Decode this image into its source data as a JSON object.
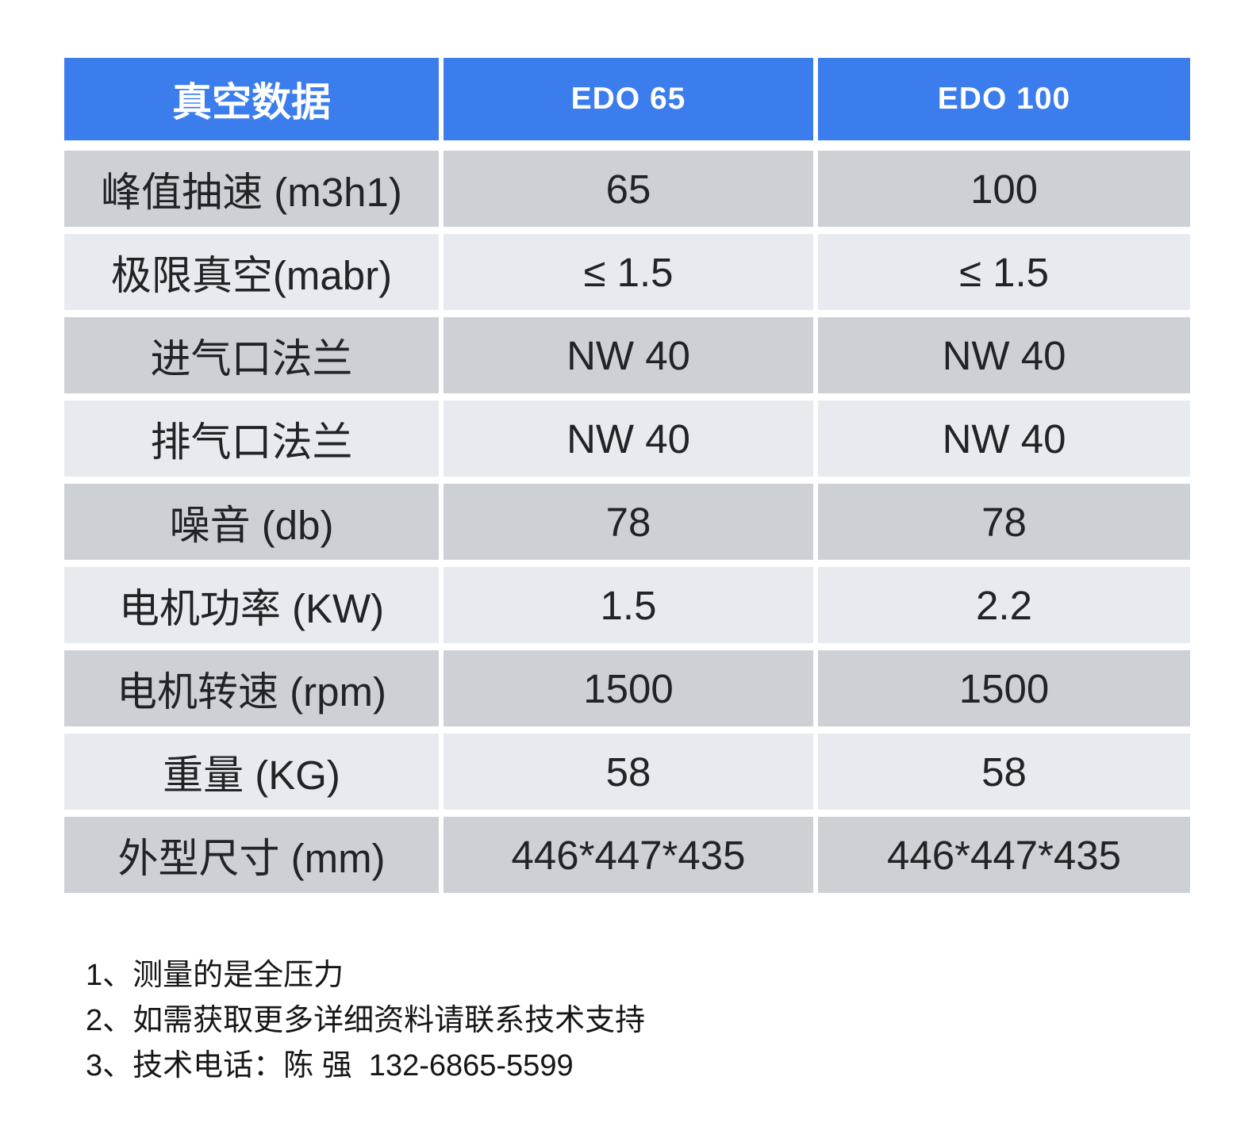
{
  "table": {
    "header": [
      "真空数据",
      "EDO 65",
      "EDO 100"
    ],
    "rows": [
      {
        "label": "峰值抽速 (m3h1)",
        "values": [
          "65",
          "100"
        ]
      },
      {
        "label": "极限真空(mabr)",
        "values": [
          "≤ 1.5",
          "≤ 1.5"
        ]
      },
      {
        "label": "进气口法兰",
        "values": [
          "NW 40",
          "NW 40"
        ]
      },
      {
        "label": "排气口法兰",
        "values": [
          "NW 40",
          "NW 40"
        ]
      },
      {
        "label": "噪音 (db)",
        "values": [
          "78",
          "78"
        ]
      },
      {
        "label": "电机功率 (KW)",
        "values": [
          "1.5",
          "2.2"
        ]
      },
      {
        "label": "电机转速 (rpm)",
        "values": [
          "1500",
          "1500"
        ]
      },
      {
        "label": "重量 (KG)",
        "values": [
          "58",
          "58"
        ]
      },
      {
        "label": "外型尺寸 (mm)",
        "values": [
          "446*447*435",
          "446*447*435"
        ]
      }
    ]
  },
  "notes": [
    "1、测量的是全压力",
    "2、如需获取更多详细资料请联系技术支持",
    "3、技术电话：陈 强  132-6865-5599"
  ],
  "colors": {
    "header_blue": "#3B7DED",
    "header_text": "#FFFFFF",
    "row_dark": "#CDD1D6",
    "row_light": "#E7EAEE",
    "cell_text": "#212326",
    "note_text": "#161616"
  }
}
